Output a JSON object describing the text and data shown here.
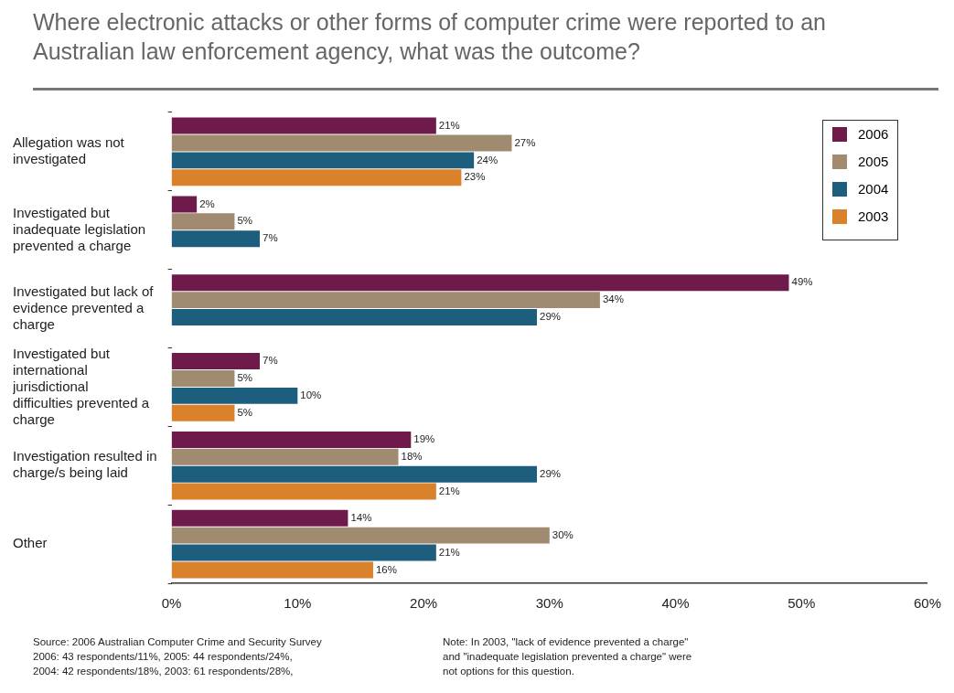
{
  "chart_data": {
    "type": "bar",
    "orientation": "horizontal",
    "title": "Where electronic attacks or other forms of computer crime were reported to an Australian law enforcement agency, what was the outcome?",
    "categories": [
      "Allegation was not investigated",
      "Investigated but inadequate legislation prevented a charge",
      "Investigated but lack of evidence prevented a charge",
      "Investigated but international jurisdictional difficulties prevented a charge",
      "Investigation resulted in charge/s being laid",
      "Other"
    ],
    "series": [
      {
        "name": "2006",
        "color": "#6e1a4a",
        "values": [
          21,
          2,
          49,
          7,
          19,
          14
        ],
        "value_labels": [
          "21%",
          "2%",
          "49%",
          "7%",
          "19%",
          "14%"
        ]
      },
      {
        "name": "2005",
        "color": "#a08a70",
        "values": [
          27,
          5,
          34,
          5,
          18,
          30
        ],
        "value_labels": [
          "27%",
          "5%",
          "34%",
          "5%",
          "18%",
          "30%"
        ]
      },
      {
        "name": "2004",
        "color": "#1d5e7e",
        "values": [
          24,
          7,
          29,
          10,
          29,
          21
        ],
        "value_labels": [
          "24%",
          "7%",
          "29%",
          "10%",
          "29%",
          "21%"
        ]
      },
      {
        "name": "2003",
        "color": "#d9822b",
        "values": [
          23,
          null,
          null,
          5,
          21,
          16
        ],
        "value_labels": [
          "23%",
          null,
          null,
          "5%",
          "21%",
          "16%"
        ]
      }
    ],
    "xlim": [
      0,
      60
    ],
    "xticks": [
      {
        "value": 0,
        "label": "0%"
      },
      {
        "value": 10,
        "label": "10%"
      },
      {
        "value": 20,
        "label": "20%"
      },
      {
        "value": 30,
        "label": "30%"
      },
      {
        "value": 40,
        "label": "40%"
      },
      {
        "value": 50,
        "label": "50%"
      },
      {
        "value": 60,
        "label": "60%"
      }
    ],
    "legend": "top right",
    "annotations": [
      "Source:  2006 Australian Computer Crime and Security Survey\n2006: 43 respondents/11%, 2005: 44 respondents/24%,\n2004: 42 respondents/18%, 2003: 61 respondents/28%,",
      "Note: In 2003, \"lack of evidence prevented a charge\"\nand \"inadequate legislation prevented a charge\" were\nnot options for this question."
    ]
  }
}
